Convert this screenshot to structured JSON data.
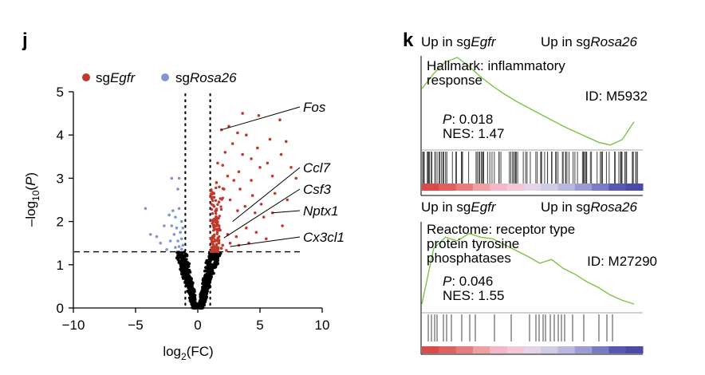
{
  "panel_j": {
    "letter": "j"
  },
  "panel_k": {
    "letter": "k"
  },
  "chart_data": [
    {
      "type": "scatter",
      "panel": "j",
      "xlabel_main": "log",
      "xlabel_sub": "2",
      "xlabel_tail": "(FC)",
      "ylabel_main": "–log",
      "ylabel_sub": "10",
      "ylabel_open": "(",
      "ylabel_var": "P",
      "ylabel_close": ")",
      "xlim": [
        -10,
        10
      ],
      "ylim": [
        0,
        5
      ],
      "xticks": [
        "−10",
        "−5",
        "0",
        "5",
        "10"
      ],
      "xtick_values": [
        -10,
        -5,
        0,
        5,
        10
      ],
      "yticks": [
        "0",
        "1",
        "2",
        "3",
        "4",
        "5"
      ],
      "ytick_values": [
        0,
        1,
        2,
        3,
        4,
        5
      ],
      "thresholds": {
        "x": [
          -1,
          1
        ],
        "y": 1.3
      },
      "legend": [
        {
          "prefix": "sg",
          "gene": "Egfr",
          "color": "#c0392b"
        },
        {
          "prefix": "sg",
          "gene": "Rosa26",
          "color": "#7f96cf"
        }
      ],
      "colors": {
        "up": "#c0392b",
        "down": "#7f96cf",
        "ns": "#000000"
      },
      "labels": [
        {
          "text": "Fos",
          "x": 1.9,
          "y": 4.12
        },
        {
          "text": "Ccl7",
          "x": 2.8,
          "y": 2.0
        },
        {
          "text": "Csf3",
          "x": 2.1,
          "y": 1.62
        },
        {
          "text": "Nptx1",
          "x": 6.0,
          "y": 2.2
        },
        {
          "text": "Cx3cl1",
          "x": 2.6,
          "y": 1.42
        }
      ],
      "points_up": [
        [
          1.9,
          4.12
        ],
        [
          3.9,
          4.0
        ],
        [
          4.3,
          3.45
        ],
        [
          5.0,
          3.25
        ],
        [
          5.6,
          3.35
        ],
        [
          6.0,
          3.05
        ],
        [
          6.7,
          3.55
        ],
        [
          7.5,
          3.25
        ],
        [
          7.9,
          3.0
        ],
        [
          4.9,
          4.45
        ],
        [
          3.6,
          4.5
        ],
        [
          6.6,
          4.35
        ],
        [
          2.2,
          3.6
        ],
        [
          2.8,
          3.8
        ],
        [
          3.3,
          3.15
        ],
        [
          2.4,
          3.05
        ],
        [
          3.4,
          2.75
        ],
        [
          4.4,
          2.6
        ],
        [
          5.1,
          2.4
        ],
        [
          6.2,
          2.65
        ],
        [
          7.2,
          2.5
        ],
        [
          6.0,
          2.2
        ],
        [
          5.3,
          2.1
        ],
        [
          4.6,
          2.2
        ],
        [
          3.8,
          2.35
        ],
        [
          3.2,
          2.25
        ],
        [
          2.6,
          2.5
        ],
        [
          2.1,
          2.75
        ],
        [
          1.7,
          2.45
        ],
        [
          1.5,
          2.1
        ],
        [
          1.3,
          1.9
        ],
        [
          1.8,
          1.8
        ],
        [
          2.4,
          1.7
        ],
        [
          3.1,
          1.65
        ],
        [
          3.9,
          1.85
        ],
        [
          4.7,
          1.75
        ],
        [
          1.2,
          1.65
        ],
        [
          1.6,
          1.55
        ],
        [
          2.0,
          1.45
        ],
        [
          2.6,
          1.5
        ],
        [
          3.3,
          1.45
        ],
        [
          4.1,
          1.5
        ],
        [
          1.1,
          1.4
        ],
        [
          1.4,
          1.35
        ],
        [
          1.9,
          1.38
        ],
        [
          2.3,
          1.33
        ],
        [
          5.5,
          1.6
        ],
        [
          6.8,
          1.9
        ],
        [
          1.5,
          2.9
        ],
        [
          2.9,
          2.95
        ],
        [
          3.6,
          3.55
        ],
        [
          4.8,
          3.7
        ],
        [
          5.8,
          3.9
        ],
        [
          7.1,
          3.85
        ],
        [
          2.0,
          3.3
        ],
        [
          2.5,
          4.2
        ],
        [
          3.2,
          4.05
        ],
        [
          1.3,
          2.65
        ],
        [
          1.6,
          3.35
        ],
        [
          4.3,
          2.95
        ]
      ],
      "points_down": [
        [
          -2.1,
          3.0
        ],
        [
          -1.5,
          3.0
        ],
        [
          -1.6,
          2.75
        ],
        [
          -2.0,
          2.25
        ],
        [
          -1.5,
          2.3
        ],
        [
          -1.8,
          2.1
        ],
        [
          -2.3,
          2.15
        ],
        [
          -1.3,
          2.0
        ],
        [
          -2.1,
          1.9
        ],
        [
          -1.7,
          1.85
        ],
        [
          -1.4,
          1.75
        ],
        [
          -1.9,
          1.7
        ],
        [
          -1.3,
          1.6
        ],
        [
          -1.6,
          1.55
        ],
        [
          -2.2,
          1.55
        ],
        [
          -1.2,
          1.45
        ],
        [
          -1.5,
          1.42
        ],
        [
          -1.8,
          1.4
        ],
        [
          -1.3,
          1.36
        ],
        [
          -2.5,
          1.35
        ],
        [
          -3.0,
          1.5
        ],
        [
          -3.3,
          1.65
        ],
        [
          -4.2,
          2.3
        ],
        [
          -3.8,
          1.7
        ],
        [
          -2.7,
          1.9
        ],
        [
          -1.2,
          1.85
        ]
      ]
    },
    {
      "type": "line",
      "panel": "k",
      "left_prefix": "Up in sg",
      "left_gene": "Egfr",
      "right_prefix": "Up in sg",
      "right_gene": "Rosa26",
      "title_lines": [
        "Hallmark: inflammatory",
        "response"
      ],
      "id": "ID: M5932",
      "p_label": "P",
      "p_value": ": 0.018",
      "nes": "NES: 1.47",
      "curve_color": "#7dc242",
      "curve_y": [
        0.35,
        0.18,
        0.05,
        0.0,
        0.1,
        0.22,
        0.32,
        0.41,
        0.49,
        0.56,
        0.63,
        0.7,
        0.77,
        0.83,
        0.89,
        0.95,
        0.98,
        0.92,
        0.72
      ]
    },
    {
      "type": "line",
      "panel": "k",
      "left_prefix": "Up in sg",
      "left_gene": "Egfr",
      "right_prefix": "Up in sg",
      "right_gene": "Rosa26",
      "title_lines": [
        "Reactome: receptor type",
        "protein tyrosine",
        "phosphatases"
      ],
      "id": "ID: M27290",
      "p_label": "P",
      "p_value": ": 0.046",
      "nes": "NES: 1.55",
      "curve_color": "#7dc242",
      "curve_y": [
        1.0,
        0.25,
        0.1,
        0.15,
        0.05,
        0.1,
        0.12,
        0.2,
        0.28,
        0.36,
        0.45,
        0.4,
        0.52,
        0.6,
        0.7,
        0.78,
        0.88,
        0.95,
        1.0
      ]
    }
  ]
}
